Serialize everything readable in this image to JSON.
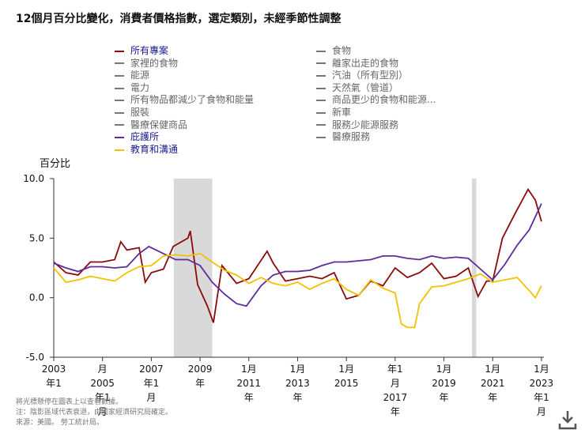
{
  "chart_data": {
    "type": "line",
    "title": "12個月百分比變化，消費者價格指數，選定類別，未經季節性調整",
    "y_label": "百分比",
    "series": [
      {
        "name": "所有專案",
        "color": "#8b0a0a",
        "x": [
          2003.0,
          2003.5,
          2004.0,
          2004.5,
          2005.0,
          2005.5,
          2005.75,
          2006.0,
          2006.5,
          2006.75,
          2007.0,
          2007.5,
          2007.9,
          2008.5,
          2008.6,
          2008.9,
          2009.3,
          2009.55,
          2009.9,
          2010.5,
          2011.0,
          2011.75,
          2012.0,
          2012.5,
          2013.0,
          2013.5,
          2014.0,
          2014.5,
          2015.0,
          2015.5,
          2016.0,
          2016.5,
          2017.0,
          2017.5,
          2018.0,
          2018.5,
          2019.0,
          2019.5,
          2020.0,
          2020.4,
          2020.75,
          2021.0,
          2021.4,
          2021.9,
          2022.45,
          2022.75,
          2023.0
        ],
        "values": [
          3.0,
          2.1,
          1.9,
          3.0,
          3.0,
          3.2,
          4.7,
          4.0,
          4.2,
          1.3,
          2.1,
          2.4,
          4.3,
          5.0,
          5.6,
          1.1,
          -0.7,
          -2.1,
          2.7,
          1.2,
          1.6,
          3.9,
          2.9,
          1.4,
          1.6,
          1.8,
          1.6,
          2.1,
          -0.1,
          0.2,
          1.4,
          1.0,
          2.5,
          1.7,
          2.1,
          2.9,
          1.6,
          1.8,
          2.5,
          0.1,
          1.4,
          1.4,
          5.0,
          7.0,
          9.1,
          8.2,
          6.4
        ]
      },
      {
        "name": "庇護所",
        "color": "#5b2c9e",
        "x": [
          2003.0,
          2003.5,
          2004.0,
          2004.5,
          2005.0,
          2005.5,
          2006.0,
          2006.5,
          2006.9,
          2007.5,
          2008.0,
          2008.5,
          2009.0,
          2009.5,
          2010.0,
          2010.5,
          2010.9,
          2011.5,
          2012.0,
          2012.5,
          2013.0,
          2013.5,
          2014.0,
          2014.5,
          2015.0,
          2015.5,
          2016.0,
          2016.5,
          2017.0,
          2017.5,
          2018.0,
          2018.5,
          2019.0,
          2019.5,
          2020.0,
          2020.5,
          2021.0,
          2021.5,
          2022.0,
          2022.5,
          2023.0
        ],
        "values": [
          2.9,
          2.5,
          2.2,
          2.6,
          2.6,
          2.5,
          2.6,
          3.7,
          4.3,
          3.7,
          3.2,
          3.2,
          2.7,
          1.3,
          0.3,
          -0.5,
          -0.7,
          1.0,
          1.9,
          2.2,
          2.2,
          2.3,
          2.7,
          3.0,
          3.0,
          3.1,
          3.2,
          3.5,
          3.5,
          3.3,
          3.2,
          3.5,
          3.3,
          3.4,
          3.3,
          2.4,
          1.5,
          2.8,
          4.4,
          5.7,
          7.9
        ]
      },
      {
        "name": "教育和溝通",
        "color": "#f2c200",
        "x": [
          2003.0,
          2003.5,
          2004.0,
          2004.5,
          2005.0,
          2005.5,
          2006.0,
          2006.5,
          2007.0,
          2007.5,
          2008.0,
          2008.5,
          2009.0,
          2009.5,
          2010.0,
          2010.5,
          2011.0,
          2011.5,
          2012.0,
          2012.5,
          2013.0,
          2013.5,
          2014.0,
          2014.5,
          2015.0,
          2015.5,
          2016.0,
          2016.5,
          2017.0,
          2017.25,
          2017.5,
          2017.8,
          2018.0,
          2018.5,
          2019.0,
          2019.5,
          2020.0,
          2020.5,
          2021.0,
          2021.5,
          2022.0,
          2022.5,
          2022.75,
          2023.0
        ],
        "values": [
          2.5,
          1.3,
          1.5,
          1.8,
          1.6,
          1.4,
          2.1,
          2.6,
          2.7,
          3.5,
          3.6,
          3.5,
          3.7,
          3.0,
          2.3,
          1.9,
          1.2,
          1.7,
          1.2,
          1.0,
          1.3,
          0.7,
          1.2,
          1.6,
          0.7,
          0.2,
          1.5,
          0.8,
          0.4,
          -2.2,
          -2.5,
          -2.5,
          -0.5,
          0.9,
          1.0,
          1.3,
          1.6,
          2.0,
          1.3,
          1.5,
          1.7,
          0.6,
          0.0,
          1.0
        ]
      }
    ],
    "legend_left": [
      "家裡的食物",
      "能源",
      "電力",
      "所有物品都減少了食物和能量",
      "服裝",
      "醫療保健商品"
    ],
    "legend_right": [
      "食物",
      "離家出走的食物",
      "汽油（所有型別）",
      "天然氣（管道）",
      "商品更少的食物和能源...",
      "新車",
      "服務少能源服務",
      "醫療服務"
    ],
    "inactive_color": "#777777",
    "recessions": [
      [
        2007.92,
        2009.5
      ],
      [
        2020.15,
        2020.33
      ]
    ],
    "recession_color": "#d9d9d9",
    "xlim": [
      2003.0,
      2023.1
    ],
    "xticks": [
      {
        "value": 2003,
        "label": "2003\n年1"
      },
      {
        "value": 2005,
        "label": "月\n2005\n年1\n月"
      },
      {
        "value": 2007,
        "label": "2007\n年1\n月"
      },
      {
        "value": 2009,
        "label": "2009\n年"
      },
      {
        "value": 2011,
        "label": "1月\n2011\n年"
      },
      {
        "value": 2013,
        "label": "1月\n2013\n年"
      },
      {
        "value": 2015,
        "label": "1月\n2015"
      },
      {
        "value": 2017,
        "label": "年1\n月\n2017\n年"
      },
      {
        "value": 2019,
        "label": "1月\n2019\n年"
      },
      {
        "value": 2021,
        "label": "1月\n2021\n年"
      },
      {
        "value": 2023,
        "label": "1月\n2023\n年1\n月"
      }
    ],
    "ylim": [
      -5,
      10
    ],
    "yticks": [
      {
        "value": -5,
        "label": "-5.0"
      },
      {
        "value": 0,
        "label": "0.0"
      },
      {
        "value": 5,
        "label": "5.0"
      },
      {
        "value": 10,
        "label": "10.0"
      }
    ],
    "notes": [
      "將光標懸停在圖表上以查看數據。",
      "注：陰影區域代表衰退，由國家經濟研究局確定。",
      "來源：美國。 勞工統計局。"
    ]
  }
}
